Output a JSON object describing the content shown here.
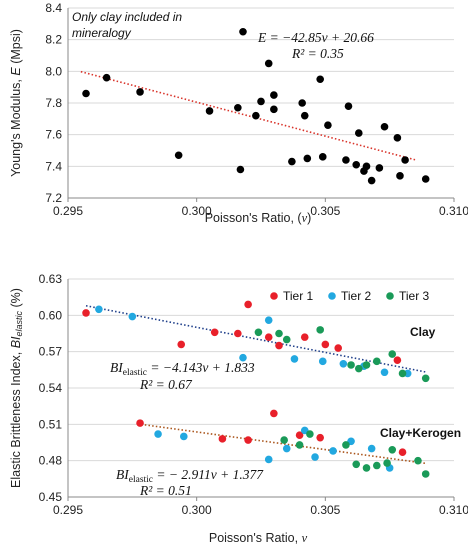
{
  "chart_data": [
    {
      "type": "scatter",
      "xlabel": "Poisson's Ratio, (",
      "xlabel_symbol": "ν",
      "xlabel_end": ")",
      "ylabel": "Young's Modulus, ",
      "ylabel_symbol": "E",
      "ylabel_end": " (Mpsi)",
      "xlim": [
        0.295,
        0.31
      ],
      "ylim": [
        7.2,
        8.4
      ],
      "xticks": [
        "0.295",
        "0.300",
        "0.305",
        "0.310"
      ],
      "xtick_values": [
        0.295,
        0.3,
        0.305,
        0.31
      ],
      "yticks": [
        "7.2",
        "7.4",
        "7.6",
        "7.8",
        "8.0",
        "8.2",
        "8.4"
      ],
      "ytick_values": [
        7.2,
        7.4,
        7.6,
        7.8,
        8.0,
        8.2,
        8.4
      ],
      "grid": "horizontal",
      "annotation": "Only clay included in mineralogy",
      "annotation_lines": [
        "Only clay included in",
        "mineralogy"
      ],
      "equation": "E = −42.85ν + 20.66",
      "r2_label": "R² = 0.35",
      "trendline": {
        "slope": -42.85,
        "intercept": 20.66,
        "x_range": [
          0.2955,
          0.3085
        ],
        "color": "#d9342b"
      },
      "marker_color": "#000000",
      "series": [
        {
          "x": [
            0.2957,
            0.2965,
            0.2978,
            0.2993,
            0.3005,
            0.3016,
            0.3017,
            0.3018,
            0.3023,
            0.3025,
            0.3028,
            0.303,
            0.303,
            0.3037,
            0.3041,
            0.3042,
            0.3043,
            0.3048,
            0.3049,
            0.3051,
            0.3058,
            0.3059,
            0.3062,
            0.3063,
            0.3065,
            0.3066,
            0.3068,
            0.3071,
            0.3073,
            0.3078,
            0.3079,
            0.3081,
            0.3089
          ],
          "values": [
            7.86,
            7.96,
            7.87,
            7.47,
            7.75,
            7.77,
            7.38,
            8.25,
            7.72,
            7.81,
            8.05,
            7.85,
            7.76,
            7.43,
            7.8,
            7.72,
            7.45,
            7.95,
            7.46,
            7.66,
            7.44,
            7.78,
            7.41,
            7.61,
            7.37,
            7.4,
            7.31,
            7.39,
            7.65,
            7.58,
            7.34,
            7.44,
            7.32
          ]
        }
      ]
    },
    {
      "type": "scatter",
      "xlabel": "Poisson's Ratio, ",
      "xlabel_symbol": "ν",
      "ylabel": "Elastic Brittleness Index, ",
      "ylabel_symbol": "BI",
      "ylabel_sub": "elastic",
      "ylabel_end": " (%)",
      "xlim": [
        0.295,
        0.31
      ],
      "ylim": [
        0.45,
        0.63
      ],
      "xticks": [
        "0.295",
        "0.300",
        "0.305",
        "0.310"
      ],
      "xtick_values": [
        0.295,
        0.3,
        0.305,
        0.31
      ],
      "yticks": [
        "0.45",
        "0.48",
        "0.51",
        "0.54",
        "0.57",
        "0.60",
        "0.63"
      ],
      "ytick_values": [
        0.45,
        0.48,
        0.51,
        0.54,
        0.57,
        0.6,
        0.63
      ],
      "grid": "horizontal",
      "legend_position": "top-right",
      "group_labels": [
        "Clay",
        "Clay+Kerogen"
      ],
      "equations": [
        {
          "bi": "BI",
          "sub": "elastic",
          "rest": " = −4.143ν + 1.833",
          "r2": "R² = 0.67"
        },
        {
          "bi": "BI",
          "sub": "elastic",
          "rest": " = − 2.911ν + 1.377",
          "r2": "R² = 0.51"
        }
      ],
      "trendlines": [
        {
          "slope": -4.143,
          "intercept": 1.833,
          "x_range": [
            0.2957,
            0.3089
          ],
          "color": "#1f3f8a"
        },
        {
          "slope": -2.911,
          "intercept": 1.377,
          "x_range": [
            0.2977,
            0.3089
          ],
          "color": "#a9541a"
        }
      ],
      "series": [
        {
          "name": "Tier 1",
          "color": "#e8202a",
          "x": [
            0.2957,
            0.2994,
            0.3007,
            0.3016,
            0.302,
            0.3028,
            0.3032,
            0.3042,
            0.305,
            0.3055,
            0.3078,
            0.2978,
            0.301,
            0.302,
            0.303,
            0.304,
            0.3048,
            0.308
          ],
          "values": [
            0.602,
            0.576,
            0.586,
            0.585,
            0.609,
            0.582,
            0.575,
            0.582,
            0.576,
            0.573,
            0.563,
            0.511,
            0.498,
            0.497,
            0.519,
            0.501,
            0.499,
            0.487
          ]
        },
        {
          "name": "Tier 2",
          "color": "#22a8e0",
          "x": [
            0.2962,
            0.2975,
            0.3018,
            0.3028,
            0.3038,
            0.3049,
            0.3057,
            0.3065,
            0.3073,
            0.3082,
            0.2985,
            0.2995,
            0.3028,
            0.3035,
            0.3042,
            0.3046,
            0.3053,
            0.306,
            0.3068,
            0.3075
          ],
          "values": [
            0.605,
            0.599,
            0.565,
            0.596,
            0.564,
            0.562,
            0.56,
            0.558,
            0.553,
            0.552,
            0.502,
            0.5,
            0.481,
            0.49,
            0.505,
            0.483,
            0.488,
            0.496,
            0.49,
            0.474
          ]
        },
        {
          "name": "Tier 3",
          "color": "#1a9a58",
          "x": [
            0.3024,
            0.3032,
            0.3035,
            0.3048,
            0.306,
            0.3063,
            0.3066,
            0.307,
            0.3076,
            0.308,
            0.3089,
            0.3034,
            0.304,
            0.3044,
            0.3058,
            0.3062,
            0.3066,
            0.307,
            0.3074,
            0.3076,
            0.3086,
            0.3089
          ],
          "values": [
            0.586,
            0.585,
            0.58,
            0.588,
            0.559,
            0.556,
            0.559,
            0.562,
            0.568,
            0.552,
            0.548,
            0.497,
            0.493,
            0.502,
            0.493,
            0.477,
            0.474,
            0.476,
            0.478,
            0.489,
            0.48,
            0.469
          ]
        }
      ]
    }
  ]
}
